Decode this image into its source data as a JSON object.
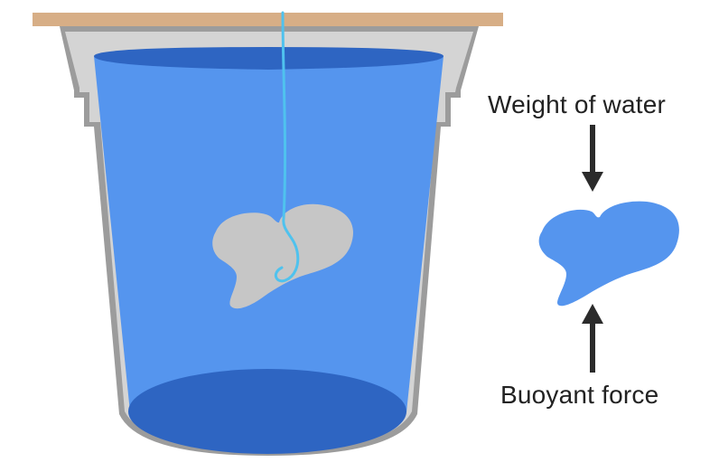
{
  "labels": {
    "weight_of_water": "Weight of water",
    "buoyant_force": "Buoyant force"
  },
  "colors": {
    "board": "#D7AE86",
    "bucket_outer": "#9C9C9C",
    "bucket_inner": "#D4D4D4",
    "water": "#5595EE",
    "water_dark": "#2E65C2",
    "rock": "#C6C6C6",
    "string": "#4FC2EE",
    "arrow": "#2B2B2B",
    "text": "#222222"
  },
  "icons": {
    "down_arrow": "arrow-down-icon",
    "up_arrow": "arrow-up-icon"
  }
}
